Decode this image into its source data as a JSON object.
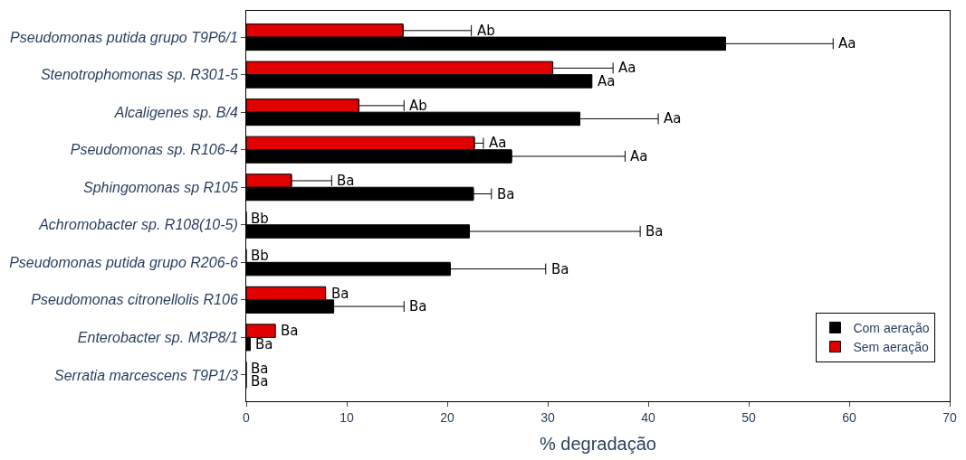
{
  "chart_data": {
    "type": "bar",
    "orientation": "horizontal",
    "xlabel": "% degradação",
    "categories": [
      "Pseudomonas putida grupo T9P6/1",
      "Stenotrophomonas sp. R301-5",
      "Alcaligenes sp. B/4",
      "Pseudomonas sp. R106-4",
      "Sphingomonas sp R105",
      "Achromobacter sp. R108(10-5)",
      "Pseudomonas putida grupo R206-6",
      "Pseudomonas citronellolis R106",
      "Enterobacter sp. M3P8/1",
      "Serratia marcescens T9P1/3"
    ],
    "series": [
      {
        "name": "Com aeração",
        "color": "#000000",
        "values": [
          47.7,
          34.4,
          33.2,
          26.4,
          22.6,
          22.2,
          20.3,
          8.7,
          0.4,
          0
        ],
        "errors": [
          [
            47.7,
            58.4
          ],
          null,
          [
            33.2,
            41.0
          ],
          [
            26.4,
            37.7
          ],
          [
            22.6,
            24.4
          ],
          [
            22.2,
            39.2
          ],
          [
            20.3,
            29.8
          ],
          [
            8.7,
            15.7
          ],
          null,
          null
        ],
        "value_labels": [
          null,
          "Aa",
          null,
          null,
          null,
          null,
          null,
          null,
          "Ba",
          "Ba"
        ]
      },
      {
        "name": "Sem aeração",
        "color": "#e00000",
        "values": [
          15.6,
          30.5,
          11.2,
          22.7,
          4.5,
          0,
          0,
          7.9,
          2.9,
          0
        ],
        "errors": [
          [
            15.6,
            22.4
          ],
          [
            30.5,
            36.5
          ],
          [
            11.2,
            15.7
          ],
          [
            22.7,
            23.6
          ],
          [
            4.5,
            8.5
          ],
          null,
          null,
          null,
          null,
          null
        ],
        "value_labels": [
          null,
          null,
          null,
          null,
          null,
          "Bb",
          "Bb",
          "Ba",
          "Ba",
          "Ba"
        ]
      }
    ],
    "xlim": [
      0,
      70
    ],
    "xticks": [
      0,
      10,
      20,
      30,
      40,
      50,
      60,
      70
    ],
    "grid": false,
    "annotations": [
      {
        "text": "Aa",
        "x": 58.4,
        "y": "Pseudomonas putida grupo T9P6/1"
      },
      {
        "text": "Ab",
        "x": 22.4,
        "y": "Pseudomonas putida grupo T9P6/1"
      },
      {
        "text": "Aa",
        "x": 36.5,
        "y": "Stenotrophomonas sp. R301-5"
      },
      {
        "text": "Aa",
        "x": 41.0,
        "y": "Alcaligenes sp. B/4"
      },
      {
        "text": "Ab",
        "x": 15.7,
        "y": "Alcaligenes sp. B/4"
      },
      {
        "text": "Aa",
        "x": 37.7,
        "y": "Pseudomonas sp. R106-4"
      },
      {
        "text": "Aa",
        "x": 23.6,
        "y": "Pseudomonas sp. R106-4"
      },
      {
        "text": "Ba",
        "x": 24.4,
        "y": "Sphingomonas sp R105"
      },
      {
        "text": "Ba",
        "x": 8.5,
        "y": "Sphingomonas sp R105"
      },
      {
        "text": "Ba",
        "x": 39.2,
        "y": "Achromobacter sp. R108(10-5)"
      },
      {
        "text": "Ba",
        "x": 29.8,
        "y": "Pseudomonas putida grupo R206-6"
      },
      {
        "text": "Ba",
        "x": 15.7,
        "y": "Pseudomonas citronellolis R106"
      }
    ],
    "legend": "bottom right"
  }
}
